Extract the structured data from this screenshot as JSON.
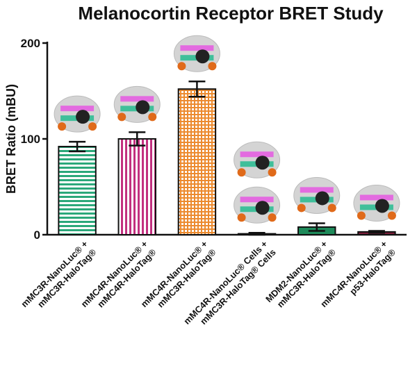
{
  "chart_data": {
    "type": "bar",
    "title": "Melanocortin Receptor BRET Study",
    "y_label": "BRET Ratio (mBU)",
    "categories": [
      [
        "mMC3R-NanoLuc® +",
        "mMC3R-HaloTag®"
      ],
      [
        "mMC4R-NanoLuc® +",
        "mMC4R-HaloTag®"
      ],
      [
        "mMC4R-NanoLuc® +",
        "mMC3R-HaloTag®"
      ],
      [
        "mMC4R-NanoLuc® Cells +",
        "mMC3R-HaloTag® Cells"
      ],
      [
        "MDM2-NanoLuc® +",
        "mMC3R-HaloTag®"
      ],
      [
        "mMC4R-NanoLuc® +",
        "p53-HaloTag®"
      ]
    ],
    "values": [
      92,
      100,
      152,
      1,
      8,
      3
    ],
    "errors": [
      5,
      7,
      8,
      1,
      4,
      1
    ],
    "colors": [
      "#2ba87a",
      "#c2307f",
      "#ec8a2e",
      "#333333",
      "#1e8a5a",
      "#7a1f3a"
    ],
    "ylim": [
      0,
      200
    ],
    "yticks": [
      0,
      100,
      200
    ]
  }
}
